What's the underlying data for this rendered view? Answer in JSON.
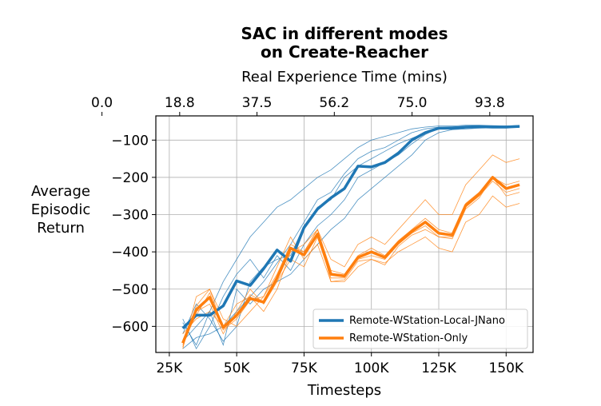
{
  "chart_data": {
    "type": "line",
    "title_line1": "SAC in different modes",
    "title_line2": "on Create-Reacher",
    "xlabel": "Timesteps",
    "top_xlabel": "Real Experience Time (mins)",
    "ylabel_lines": [
      "Average",
      "Episodic",
      "Return"
    ],
    "xlim": [
      20000,
      160000
    ],
    "ylim": [
      -670,
      -35
    ],
    "x_ticks": [
      25000,
      50000,
      75000,
      100000,
      125000,
      150000
    ],
    "x_tick_labels": [
      "25K",
      "50K",
      "75K",
      "100K",
      "125K",
      "150K"
    ],
    "y_ticks": [
      -600,
      -500,
      -400,
      -300,
      -200,
      -100
    ],
    "y_tick_labels": [
      "−600",
      "−500",
      "−400",
      "−300",
      "−200",
      "−100"
    ],
    "top_x_ticks": [
      0,
      18.8,
      37.5,
      56.2,
      75.0,
      93.8
    ],
    "top_x_tick_labels": [
      "0.0",
      "18.8",
      "37.5",
      "56.2",
      "75.0",
      "93.8"
    ],
    "top_axis_ratio": 0.0006517,
    "grid": true,
    "legend_position": "lower-right",
    "colors": {
      "blue": "#1f77b4",
      "orange": "#ff7f0e"
    },
    "x": [
      30000,
      35000,
      40000,
      45000,
      50000,
      55000,
      60000,
      65000,
      70000,
      75000,
      80000,
      85000,
      90000,
      95000,
      100000,
      105000,
      110000,
      115000,
      120000,
      125000,
      130000,
      135000,
      140000,
      145000,
      150000,
      155000
    ],
    "series": [
      {
        "name": "Remote-WStation-Local-JNano",
        "color": "#1f77b4",
        "values": [
          -605,
          -570,
          -570,
          -545,
          -478,
          -490,
          -445,
          -395,
          -425,
          -335,
          -285,
          -255,
          -230,
          -170,
          -172,
          -160,
          -135,
          -100,
          -80,
          -68,
          -68,
          -65,
          -64,
          -65,
          -65,
          -63
        ],
        "runs": [
          [
            -590,
            -650,
            -560,
            -480,
            -420,
            -360,
            -320,
            -280,
            -260,
            -230,
            -200,
            -180,
            -150,
            -120,
            -100,
            -90,
            -80,
            -70,
            -65,
            -62,
            -62,
            -60,
            -60,
            -61,
            -62,
            -62
          ],
          [
            -620,
            -540,
            -580,
            -640,
            -600,
            -480,
            -440,
            -420,
            -410,
            -330,
            -280,
            -260,
            -200,
            -170,
            -150,
            -130,
            -110,
            -95,
            -80,
            -70,
            -68,
            -66,
            -64,
            -64,
            -65,
            -64
          ],
          [
            -660,
            -630,
            -620,
            -600,
            -560,
            -520,
            -480,
            -430,
            -380,
            -320,
            -260,
            -240,
            -190,
            -150,
            -130,
            -120,
            -100,
            -80,
            -70,
            -65,
            -64,
            -63,
            -62,
            -62,
            -62,
            -61
          ],
          [
            -580,
            -660,
            -600,
            -520,
            -460,
            -420,
            -470,
            -410,
            -450,
            -380,
            -330,
            -300,
            -260,
            -200,
            -180,
            -160,
            -140,
            -110,
            -85,
            -68,
            -66,
            -65,
            -64,
            -64,
            -64,
            -63
          ],
          [
            -640,
            -600,
            -560,
            -650,
            -500,
            -540,
            -500,
            -480,
            -460,
            -420,
            -380,
            -340,
            -310,
            -260,
            -230,
            -200,
            -170,
            -140,
            -100,
            -80,
            -72,
            -70,
            -68,
            -67,
            -66,
            -65
          ]
        ]
      },
      {
        "name": "Remote-WStation-Only",
        "color": "#ff7f0e",
        "values": [
          -645,
          -555,
          -522,
          -603,
          -570,
          -525,
          -535,
          -470,
          -390,
          -408,
          -352,
          -460,
          -465,
          -415,
          -400,
          -415,
          -375,
          -345,
          -320,
          -350,
          -355,
          -275,
          -245,
          -200,
          -230,
          -220
        ],
        "runs": [
          [
            -620,
            -580,
            -560,
            -600,
            -540,
            -520,
            -560,
            -500,
            -400,
            -380,
            -340,
            -420,
            -440,
            -380,
            -360,
            -380,
            -340,
            -300,
            -260,
            -300,
            -300,
            -220,
            -180,
            -140,
            -160,
            -150
          ],
          [
            -660,
            -520,
            -500,
            -580,
            -600,
            -560,
            -520,
            -440,
            -360,
            -420,
            -380,
            -480,
            -480,
            -440,
            -420,
            -430,
            -400,
            -380,
            -360,
            -390,
            -400,
            -320,
            -300,
            -250,
            -280,
            -270
          ],
          [
            -650,
            -560,
            -540,
            -620,
            -560,
            -500,
            -540,
            -480,
            -420,
            -440,
            -360,
            -470,
            -470,
            -420,
            -410,
            -420,
            -380,
            -350,
            -330,
            -360,
            -360,
            -280,
            -250,
            -210,
            -240,
            -230
          ],
          [
            -640,
            -570,
            -510,
            -610,
            -580,
            -530,
            -520,
            -460,
            -380,
            -400,
            -340,
            -450,
            -460,
            -410,
            -390,
            -410,
            -370,
            -340,
            -310,
            -340,
            -350,
            -270,
            -240,
            -200,
            -220,
            -210
          ],
          [
            -655,
            -545,
            -500,
            -605,
            -570,
            -515,
            -535,
            -470,
            -390,
            -400,
            -340,
            -480,
            -475,
            -425,
            -420,
            -435,
            -385,
            -355,
            -340,
            -360,
            -365,
            -285,
            -255,
            -200,
            -250,
            -240
          ]
        ]
      }
    ]
  }
}
